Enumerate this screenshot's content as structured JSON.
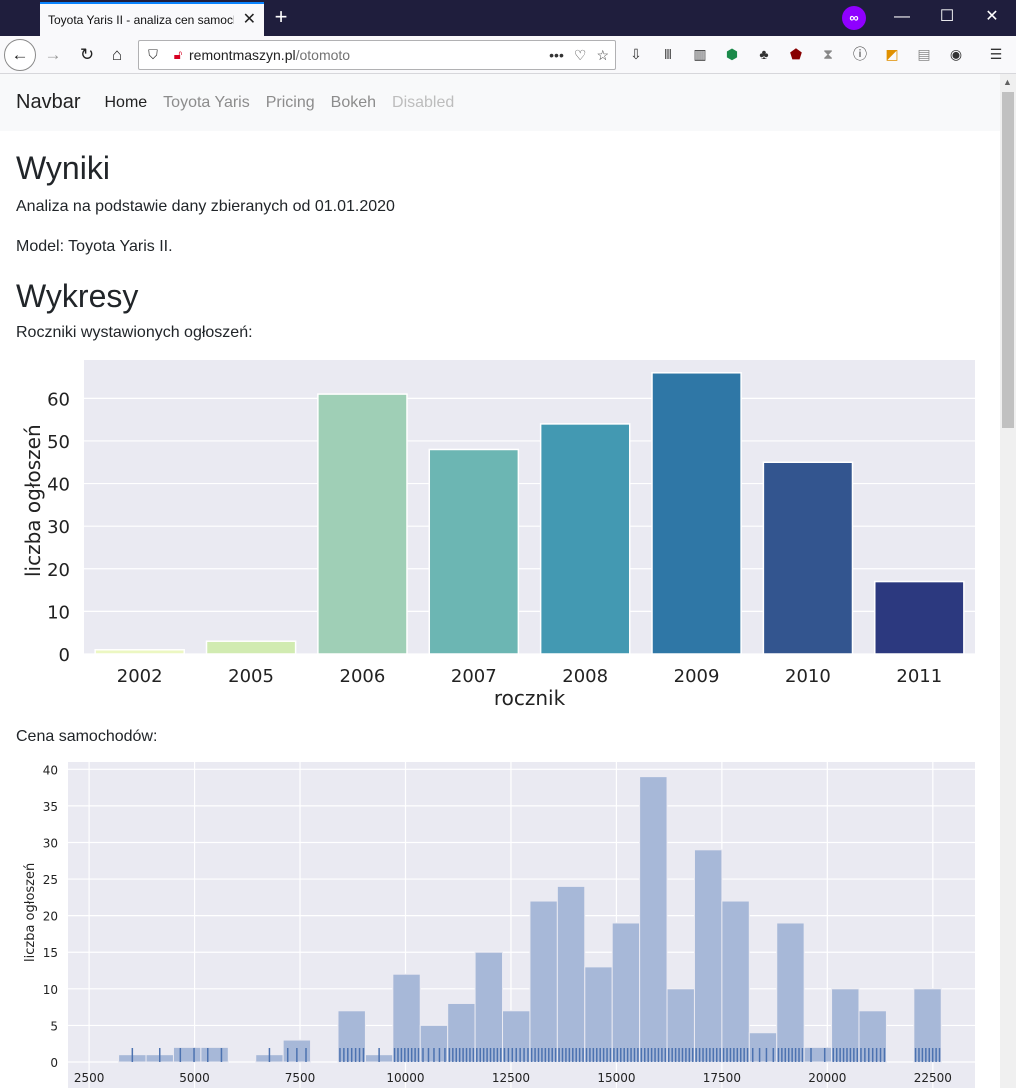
{
  "browser": {
    "tab_title": "Toyota Yaris II - analiza cen samochodów",
    "url_host": "remontmaszyn.pl",
    "url_path": "/otomoto"
  },
  "nav": {
    "brand": "Navbar",
    "links": [
      {
        "label": "Home",
        "state": "active"
      },
      {
        "label": "Toyota Yaris",
        "state": "normal"
      },
      {
        "label": "Pricing",
        "state": "normal"
      },
      {
        "label": "Bokeh",
        "state": "normal"
      },
      {
        "label": "Disabled",
        "state": "disabled"
      }
    ]
  },
  "content": {
    "heading1": "Wyniki",
    "para1": "Analiza na podstawie dany zbieranych od 01.01.2020",
    "para2": "Model: Toyota Yaris II.",
    "heading2": "Wykresy",
    "para3": "Roczniki wystawionych ogłoszeń:",
    "para4": "Cena samochodów:"
  },
  "chart_data": [
    {
      "type": "bar",
      "xlabel": "rocznik",
      "ylabel": "liczba ogłoszeń",
      "categories": [
        "2002",
        "2005",
        "2006",
        "2007",
        "2008",
        "2009",
        "2010",
        "2011"
      ],
      "values": [
        1,
        3,
        61,
        48,
        54,
        66,
        45,
        17
      ],
      "colors": [
        "#ecf7c2",
        "#d1ebb1",
        "#9fcfb6",
        "#6cb6b3",
        "#4399b2",
        "#2f77a6",
        "#33558f",
        "#2c397f"
      ],
      "yticks": [
        0,
        10,
        20,
        30,
        40,
        50,
        60
      ],
      "ylim": [
        0,
        69
      ],
      "background": "#eaeaf2",
      "grid": "horizontal"
    },
    {
      "type": "histogram",
      "xlabel": "",
      "ylabel": "liczba ogłoszeń",
      "bin_width": 650,
      "x_start": 3200,
      "counts": [
        1,
        1,
        2,
        2,
        0,
        1,
        3,
        0,
        7,
        1,
        12,
        5,
        8,
        15,
        7,
        22,
        24,
        13,
        19,
        39,
        10,
        29,
        22,
        4,
        19,
        2,
        10,
        7,
        0,
        10
      ],
      "xticks": [
        2500,
        5000,
        7500,
        10000,
        12500,
        15000,
        17500,
        20000,
        22500
      ],
      "yticks": [
        0,
        5,
        10,
        15,
        20,
        25,
        30,
        35,
        40
      ],
      "xlim": [
        2000,
        23500
      ],
      "ylim": [
        0,
        41
      ],
      "bar_color": "#a7b8d8",
      "rug_color": "#4c72b0",
      "background": "#eaeaf2",
      "grid": "both"
    }
  ]
}
